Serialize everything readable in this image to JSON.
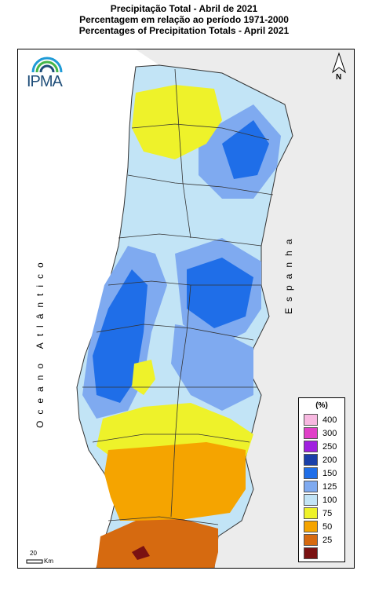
{
  "titles": {
    "line1": "Precipitação Total  -  Abril de 2021",
    "line2": "Percentagem em relação ao período 1971-2000",
    "line3": "Percentages of Precipitation Totals - April 2021"
  },
  "logo_text": "IPMA",
  "north_label": "N",
  "ocean_label": "Oceano Atlântico",
  "spain_label": "Espanha",
  "legend": {
    "title": "(%)",
    "items": [
      {
        "label": "400",
        "color": "#f7b8e0"
      },
      {
        "label": "300",
        "color": "#e040c8"
      },
      {
        "label": "250",
        "color": "#a020e0"
      },
      {
        "label": "200",
        "color": "#1a3fa8"
      },
      {
        "label": "150",
        "color": "#1f6ee8"
      },
      {
        "label": "125",
        "color": "#7faaf0"
      },
      {
        "label": "100",
        "color": "#c2e4f6"
      },
      {
        "label": "75",
        "color": "#eef22a"
      },
      {
        "label": "50",
        "color": "#f5a400"
      },
      {
        "label": "25",
        "color": "#d66a10"
      },
      {
        "label": "",
        "color": "#7a1212"
      }
    ]
  },
  "scale": {
    "value": "20",
    "unit": "Km"
  }
}
